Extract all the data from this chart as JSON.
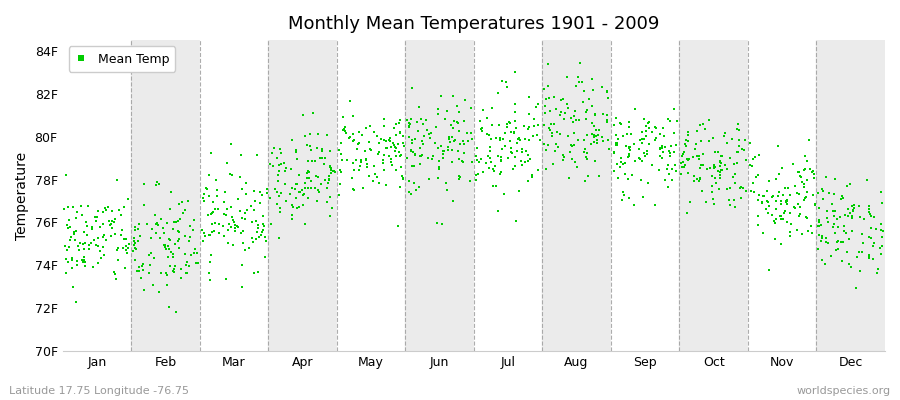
{
  "title": "Monthly Mean Temperatures 1901 - 2009",
  "ylabel": "Temperature",
  "ylim": [
    70,
    84.5
  ],
  "ylim_display": [
    70,
    84
  ],
  "yticks": [
    70,
    72,
    74,
    76,
    78,
    80,
    82,
    84
  ],
  "ytick_labels": [
    "70F",
    "72F",
    "74F",
    "76F",
    "78F",
    "80F",
    "82F",
    "84F"
  ],
  "months": [
    "Jan",
    "Feb",
    "Mar",
    "Apr",
    "May",
    "Jun",
    "Jul",
    "Aug",
    "Sep",
    "Oct",
    "Nov",
    "Dec"
  ],
  "month_means": [
    75.2,
    74.8,
    76.3,
    78.2,
    79.3,
    79.4,
    79.8,
    80.3,
    79.3,
    78.8,
    77.2,
    75.8
  ],
  "month_stds": [
    1.1,
    1.4,
    1.2,
    1.1,
    1.0,
    1.2,
    1.3,
    1.2,
    1.1,
    1.1,
    1.2,
    1.1
  ],
  "n_years": 109,
  "marker_color": "#00cc00",
  "marker": "s",
  "marker_size": 2,
  "bg_color": "#ffffff",
  "plot_bg_color": "#ffffff",
  "band_color_even": "#ffffff",
  "band_color_odd": "#ebebeb",
  "grid_line_color": "#999999",
  "legend_label": "Mean Temp",
  "bottom_left_text": "Latitude 17.75 Longitude -76.75",
  "bottom_right_text": "worldspecies.org",
  "seed": 42
}
